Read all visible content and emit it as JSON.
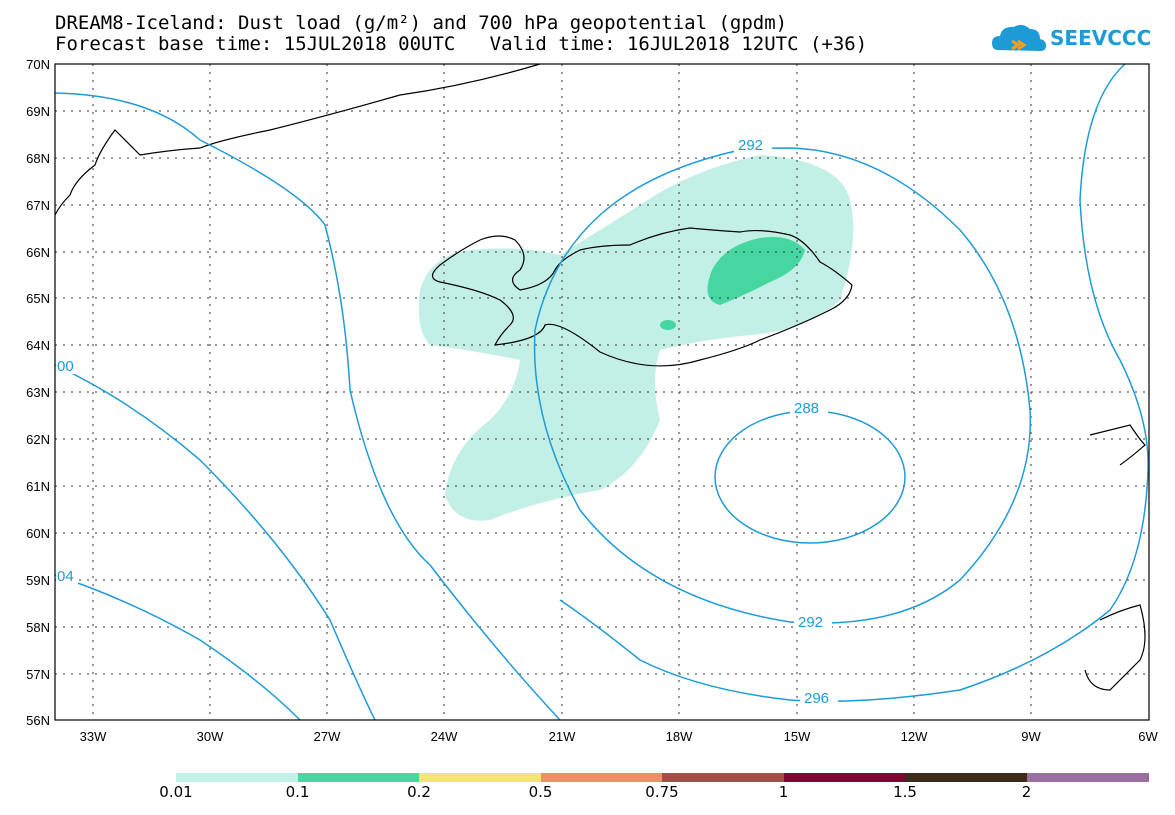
{
  "title": {
    "line1": "DREAM8-Iceland: Dust load (g/m²) and 700 hPa geopotential (gpdm)",
    "line2": "Forecast base time: 15JUL2018 00UTC   Valid time: 16JUL2018 12UTC (+36)"
  },
  "logo": {
    "text": "SEEVCCC",
    "icon": "cloud-logo-icon",
    "color": "#1e9bd7"
  },
  "map": {
    "lat_labels": [
      "70N",
      "69N",
      "68N",
      "67N",
      "66N",
      "65N",
      "64N",
      "63N",
      "62N",
      "61N",
      "60N",
      "59N",
      "58N",
      "57N",
      "56N"
    ],
    "lon_labels": [
      "33W",
      "30W",
      "27W",
      "24W",
      "21W",
      "18W",
      "15W",
      "12W",
      "9W",
      "6W"
    ],
    "contour_color": "#1e9bd7",
    "contour_labels": [
      "292",
      "288",
      "292",
      "296",
      "00",
      "04"
    ]
  },
  "colorbar": {
    "labels": [
      "0.01",
      "0.1",
      "0.2",
      "0.5",
      "0.75",
      "1",
      "1.5",
      "2"
    ],
    "colors": [
      "#c3f0e6",
      "#46d6a0",
      "#f4e47c",
      "#e9926a",
      "#a0504a",
      "#7a0a33",
      "#3e2a18",
      "#9a6ea0"
    ]
  }
}
